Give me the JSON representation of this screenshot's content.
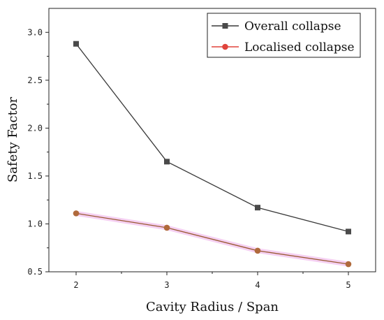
{
  "chart_data": {
    "type": "line",
    "xlabel": "Cavity Radius / Span",
    "ylabel": "Safety Factor",
    "x": [
      2,
      3,
      4,
      5
    ],
    "x_ticks": [
      "2",
      "3",
      "4",
      "5"
    ],
    "xlim": [
      1.7,
      5.3
    ],
    "y_ticks": [
      "0.5",
      "1.0",
      "1.5",
      "2.0",
      "2.5",
      "3.0"
    ],
    "ylim": [
      0.5,
      3.25
    ],
    "grid": false,
    "legend_position": "top-right",
    "series": [
      {
        "name": "Overall collapse",
        "values": [
          2.88,
          1.65,
          1.17,
          0.92
        ],
        "color": "#3a3a3a",
        "marker": "square"
      },
      {
        "name": "Localised collapse",
        "values": [
          1.11,
          0.96,
          0.72,
          0.58
        ],
        "color": "#e0443c",
        "marker": "circle"
      }
    ]
  }
}
